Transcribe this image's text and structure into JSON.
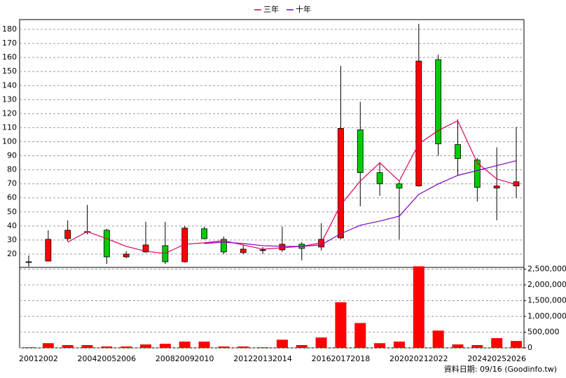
{
  "chart_data": {
    "type": "candlestick",
    "categories": [
      "2001",
      "2002",
      null,
      "2004",
      "2005",
      "2006",
      null,
      "2008",
      "2009",
      "2010",
      null,
      "2012",
      "2013",
      "2014",
      null,
      "2016",
      "2017",
      "2018",
      null,
      "2020",
      "2021",
      "2022",
      null,
      "2024",
      "2025",
      "2026"
    ],
    "open": [
      14,
      15,
      31,
      35.5,
      37,
      18,
      21.5,
      26,
      14.5,
      38,
      30.5,
      21,
      22.5,
      23,
      27,
      25,
      31.5,
      108.5,
      78,
      70,
      68.5,
      158.5,
      98,
      87,
      67,
      68.5
    ],
    "high": [
      19,
      37,
      44,
      55,
      38,
      22,
      43,
      43,
      40,
      39.5,
      32.5,
      26.5,
      25,
      39.5,
      28.5,
      42,
      154,
      128.5,
      85,
      72,
      184,
      162,
      116,
      88.5,
      96,
      110.5
    ],
    "low": [
      11,
      15,
      29,
      34,
      13,
      17,
      21,
      13,
      14,
      30.5,
      20,
      20,
      20,
      21.5,
      15.5,
      22.5,
      30.5,
      54,
      61.5,
      30.5,
      68,
      90,
      76,
      57.5,
      44,
      60
    ],
    "close": [
      14.5,
      30.5,
      37,
      36,
      18,
      20,
      26.5,
      14.5,
      38.5,
      31,
      21.5,
      23.5,
      23,
      27,
      24,
      30.5,
      109.5,
      78,
      70,
      67,
      157.5,
      98.5,
      88,
      67.5,
      68.5,
      71.5
    ],
    "up_color": "#ff0000",
    "down_color": "#00cc00",
    "series": [
      {
        "name": "三年",
        "color": "#e0005a",
        "values": [
          null,
          null,
          28.5,
          36,
          31,
          25.5,
          22,
          20.5,
          27,
          28,
          29.5,
          26.5,
          23.5,
          24.5,
          25.5,
          28,
          55,
          72,
          85,
          72,
          98.5,
          108,
          115,
          85,
          73.5,
          69.5
        ]
      },
      {
        "name": "十年",
        "color": "#8000c8",
        "values": [
          null,
          null,
          null,
          null,
          null,
          null,
          null,
          null,
          null,
          27.5,
          28.5,
          27.5,
          26,
          25.5,
          25.5,
          26.5,
          34.5,
          40.5,
          43.5,
          47,
          62.5,
          70,
          76,
          79.5,
          83,
          86.5
        ]
      }
    ],
    "volume": {
      "color": "#ff0000",
      "axis": "y2",
      "values": [
        20000,
        150000,
        90000,
        90000,
        45000,
        45000,
        110000,
        130000,
        200000,
        200000,
        45000,
        45000,
        20000,
        260000,
        90000,
        330000,
        1450000,
        790000,
        150000,
        200000,
        2590000,
        550000,
        110000,
        90000,
        310000,
        220000
      ]
    },
    "ylim": [
      10.5,
      187
    ],
    "yticks": [
      20,
      30,
      40,
      50,
      60,
      70,
      80,
      90,
      100,
      110,
      120,
      130,
      140,
      150,
      160,
      170,
      180
    ],
    "y2lim": [
      0,
      2600000
    ],
    "y2ticks": [
      0,
      {
        "value": 500000,
        "label": "500,000"
      },
      {
        "value": 1000000,
        "label": "1,000,000"
      },
      {
        "value": 1500000,
        "label": "1,500,000"
      },
      {
        "value": 2000000,
        "label": "2,000,000"
      },
      {
        "value": 2500000,
        "label": "2,500,000"
      }
    ],
    "grid": true,
    "note": "資料日期: 09/16  (Goodinfo.tw)"
  }
}
